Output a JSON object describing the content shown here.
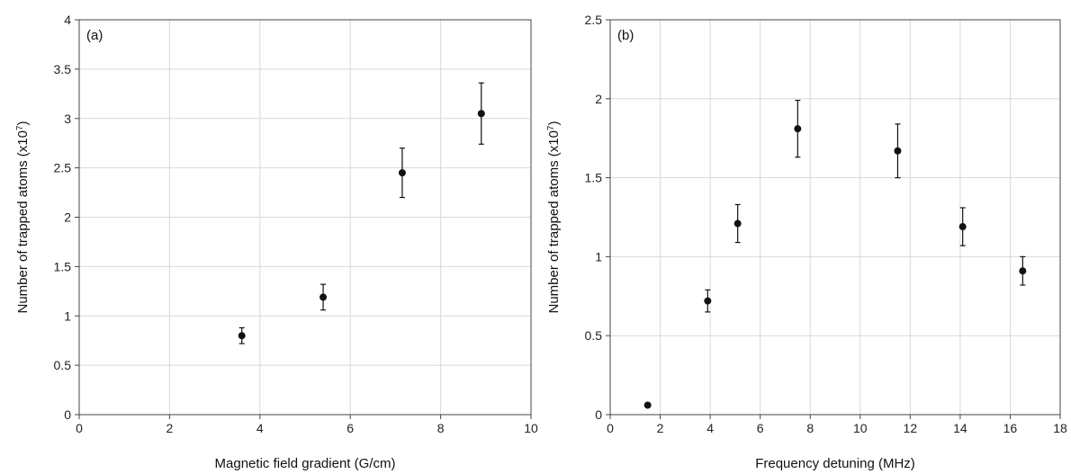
{
  "chart_data": [
    {
      "type": "scatter",
      "panel_label": "(a)",
      "xlabel": "Magnetic field gradient (G/cm)",
      "ylabel_main": "Number of trapped atoms (x10",
      "ylabel_sup": "7",
      "ylabel_end": ")",
      "xlim": [
        0,
        10
      ],
      "ylim": [
        0,
        4
      ],
      "xticks": [
        "0",
        "2",
        "4",
        "6",
        "8",
        "10"
      ],
      "yticks": [
        "0",
        "0.5",
        "1",
        "1.5",
        "2",
        "2.5",
        "3",
        "3.5",
        "4"
      ],
      "grid": true,
      "points": [
        {
          "x": 3.6,
          "y": 0.8,
          "err": 0.08
        },
        {
          "x": 5.4,
          "y": 1.19,
          "err": 0.13
        },
        {
          "x": 7.15,
          "y": 2.45,
          "err": 0.25
        },
        {
          "x": 8.9,
          "y": 3.05,
          "err": 0.31
        }
      ]
    },
    {
      "type": "scatter",
      "panel_label": "(b)",
      "xlabel": "Frequency detuning (MHz)",
      "ylabel_main": "Number of trapped atoms (x10",
      "ylabel_sup": "7",
      "ylabel_end": ")",
      "xlim": [
        0,
        18
      ],
      "ylim": [
        0,
        2.5
      ],
      "xticks": [
        "0",
        "2",
        "4",
        "6",
        "8",
        "10",
        "12",
        "14",
        "16",
        "18"
      ],
      "yticks": [
        "0",
        "0.5",
        "1",
        "1.5",
        "2",
        "2.5"
      ],
      "grid": true,
      "points": [
        {
          "x": 1.5,
          "y": 0.06,
          "err": 0.0
        },
        {
          "x": 3.9,
          "y": 0.72,
          "err": 0.07
        },
        {
          "x": 5.1,
          "y": 1.21,
          "err": 0.12
        },
        {
          "x": 7.5,
          "y": 1.81,
          "err": 0.18
        },
        {
          "x": 11.5,
          "y": 1.67,
          "err": 0.17
        },
        {
          "x": 14.1,
          "y": 1.19,
          "err": 0.12
        },
        {
          "x": 16.5,
          "y": 0.91,
          "err": 0.09
        }
      ]
    }
  ]
}
